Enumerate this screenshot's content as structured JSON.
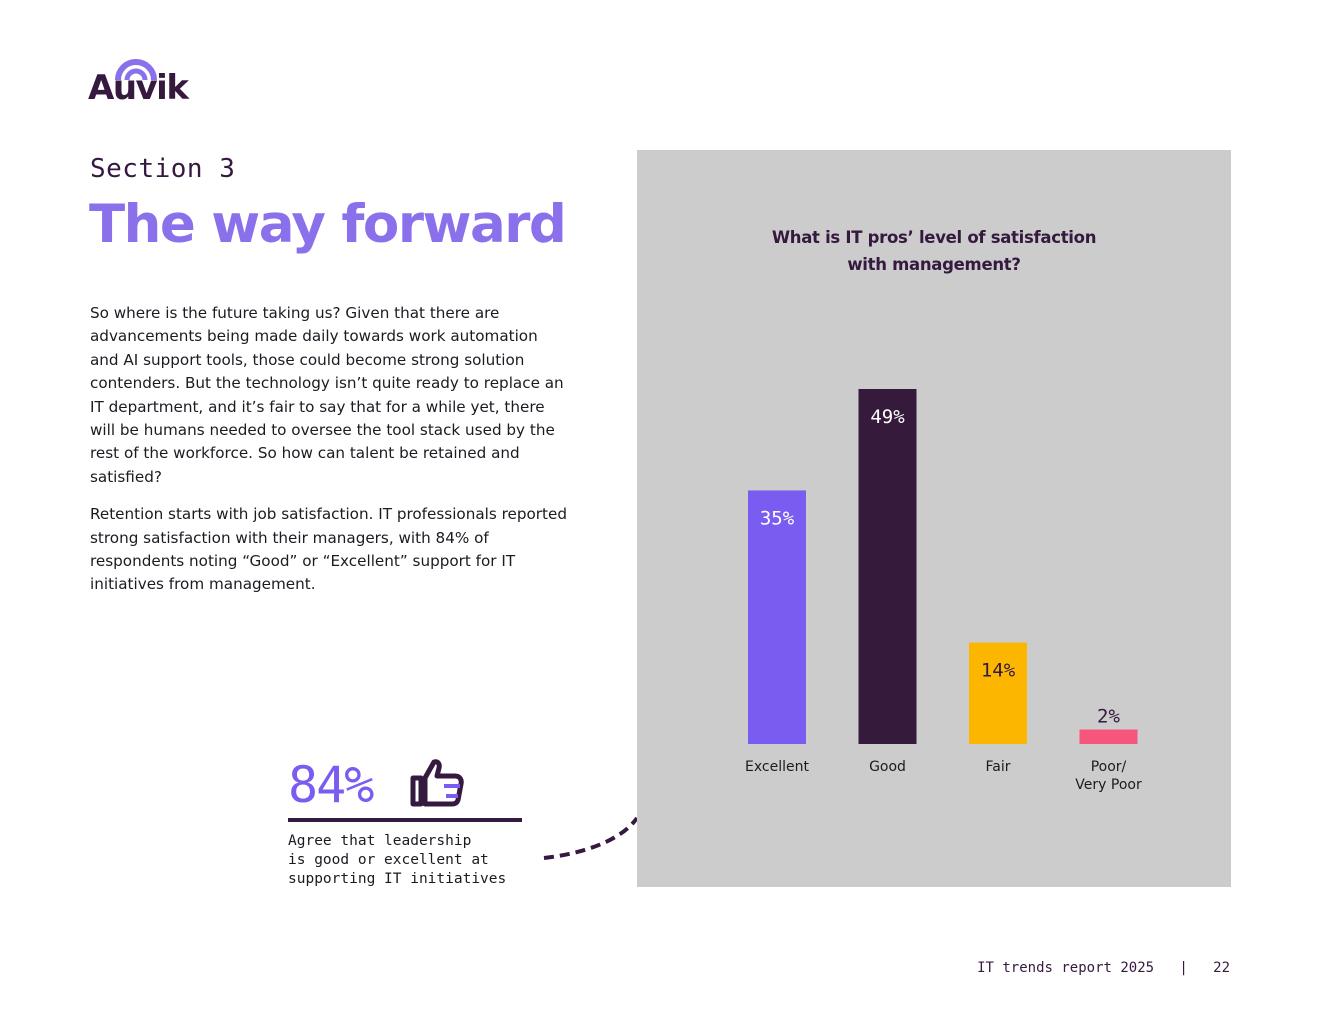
{
  "logo": {
    "text": "Auvik"
  },
  "header": {
    "section_label": "Section 3",
    "title": "The way forward"
  },
  "body": {
    "paragraphs": [
      "So where is the future taking us? Given that there are advancements being made daily towards work automation and AI support tools, those could become strong solution contenders. But the technology isn’t quite ready to replace an IT department, and it’s fair to say that for a while yet, there will be humans needed to oversee the tool stack used by the rest of the workforce. So how can talent be retained and satisfied?",
      "Retention starts with job satisfaction. IT professionals reported strong satisfaction with their managers, with 84% of respondents noting “Good” or “Excellent” support for IT initiatives from management."
    ]
  },
  "stat": {
    "value": "84%",
    "caption": "Agree that leadership\nis good or excellent at\nsupporting IT initiatives",
    "icon": "thumbs-up-icon"
  },
  "chart_data": {
    "type": "bar",
    "title_lines": [
      "What is IT pros’ level of satisfaction",
      "with management?"
    ],
    "categories": [
      "Excellent",
      "Good",
      "Fair",
      "Poor/\nVery Poor"
    ],
    "values": [
      35,
      49,
      14,
      2
    ],
    "data_labels": [
      "35%",
      "49%",
      "14%",
      "2%"
    ],
    "colors": [
      "#7b5cf0",
      "#361a3b",
      "#fdb600",
      "#f7567c"
    ],
    "label_colors": [
      "#ffffff",
      "#ffffff",
      "#35193f",
      "#35193f"
    ],
    "ylim": [
      0,
      49
    ],
    "xlabel": "",
    "ylabel": ""
  },
  "footer": {
    "report": "IT trends report 2025",
    "separator": "|",
    "page_number": "22"
  },
  "colors": {
    "brand_purple": "#7b5cf0",
    "title_lavender": "#8a70ea",
    "dark_plum": "#35193f",
    "panel_gray": "#cccccc"
  }
}
